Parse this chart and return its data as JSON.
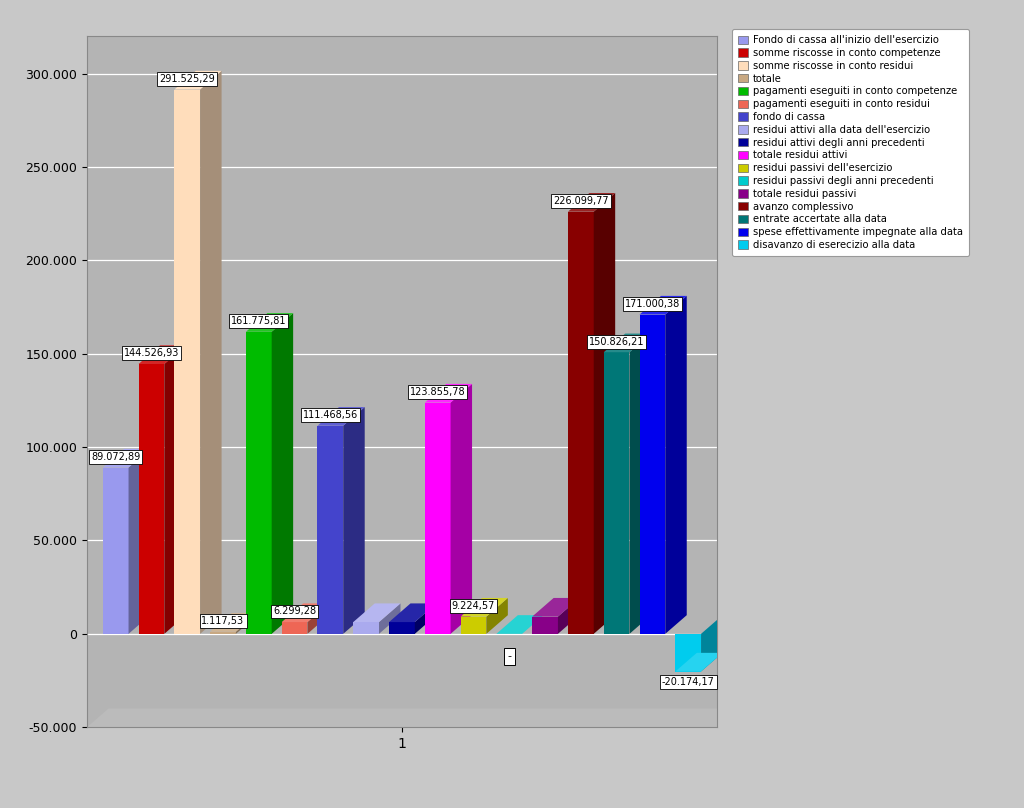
{
  "series": [
    {
      "label": "Fondo di cassa all'inizio dell'esercizio",
      "value": 89072.89,
      "color": "#9999EE",
      "edge": "#7777CC"
    },
    {
      "label": "somme riscosse in conto competenze",
      "value": 144526.93,
      "color": "#CC0000",
      "edge": "#990000"
    },
    {
      "label": "somme riscosse in conto residui",
      "value": 291525.29,
      "color": "#FFDDBB",
      "edge": "#DDBB99"
    },
    {
      "label": "totale",
      "value": 1117.53,
      "color": "#C8A882",
      "edge": "#A08060"
    },
    {
      "label": "pagamenti eseguiti in conto competenze",
      "value": 161775.81,
      "color": "#00BB00",
      "edge": "#008800"
    },
    {
      "label": "pagamenti eseguiti in conto residui",
      "value": 6299.28,
      "color": "#EE6655",
      "edge": "#CC4433"
    },
    {
      "label": "fondo di cassa",
      "value": 111468.56,
      "color": "#4444CC",
      "edge": "#2222AA"
    },
    {
      "label": "residui attivi alla data dell'esercizio",
      "value": 6299.28,
      "color": "#AAAAEE",
      "edge": "#8888CC"
    },
    {
      "label": "residui attivi degli anni precedenti",
      "value": 6299.28,
      "color": "#000099",
      "edge": "#000077"
    },
    {
      "label": "totale residui attivi",
      "value": 123855.78,
      "color": "#FF00FF",
      "edge": "#CC00CC"
    },
    {
      "label": "residui passivi dell'esercizio",
      "value": 9224.57,
      "color": "#CCCC00",
      "edge": "#AAAA00"
    },
    {
      "label": "residui passivi degli anni precedenti",
      "value": 0.0,
      "color": "#00CCCC",
      "edge": "#00AAAA"
    },
    {
      "label": "totale residui passivi",
      "value": 9224.57,
      "color": "#880088",
      "edge": "#660066"
    },
    {
      "label": "avanzo complessivo",
      "value": 226099.77,
      "color": "#880000",
      "edge": "#660000"
    },
    {
      "label": "entrate accertate alla data",
      "value": 150826.21,
      "color": "#007777",
      "edge": "#005555"
    },
    {
      "label": "spese effettivamente impegnate alla data",
      "value": 171000.38,
      "color": "#0000EE",
      "edge": "#0000CC"
    },
    {
      "label": "disavanzo di eserecizio alla data",
      "value": -20174.17,
      "color": "#00CCEE",
      "edge": "#00AACC"
    }
  ],
  "labels_shown": [
    "89.072,89",
    "144.526,93",
    "291.525,29",
    "1.117,53",
    "161.775,81",
    "6.299,28",
    "111.468,56",
    null,
    null,
    "123.855,78",
    "9.224,57",
    "-",
    null,
    "226.099,77",
    "150.826,21",
    "171.000,38",
    "-20.174,17"
  ],
  "xtick_label": "1",
  "ylim": [
    -50000,
    320000
  ],
  "yticks": [
    -50000,
    0,
    50000,
    100000,
    150000,
    200000,
    250000,
    300000
  ],
  "ytick_labels": [
    "-50.000",
    "0",
    "50.000",
    "100.000",
    "150.000",
    "200.000",
    "250.000",
    "300.000"
  ],
  "fig_bg": "#C8C8C8",
  "plot_bg": "#B4B4B4",
  "wall_bg": "#AAAAAA",
  "bar_width": 0.72,
  "depth": 4,
  "depth_color": "#888888"
}
